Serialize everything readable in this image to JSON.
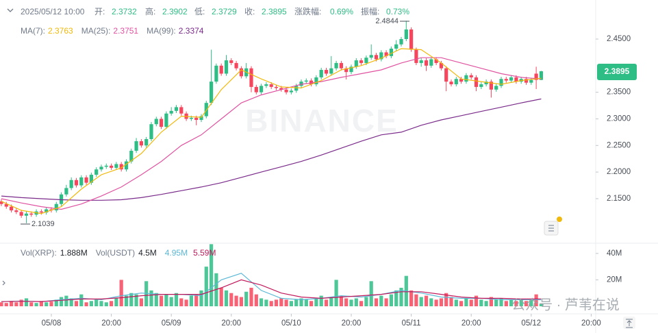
{
  "chart_data": {
    "type": "candlestick",
    "header": {
      "time": "2025/05/12 10:00",
      "open_label": "开:",
      "open": "2.3732",
      "high_label": "高:",
      "high": "2.3902",
      "low_label": "低:",
      "low": "2.3729",
      "close_label": "收:",
      "close": "2.3895",
      "change_label": "涨跌幅:",
      "change": "0.69%",
      "amp_label": "振幅:",
      "amp": "0.73%"
    },
    "watermark": "BINANCE",
    "overlay_text": "公众号 · 芦苇在说",
    "last_price_label": "2.3895",
    "annotations": [
      "2.4844",
      "2.1039"
    ],
    "up_color": "#2ebd85",
    "down_color": "#f6465d",
    "xlim": [
      -10.27,
      108.9
    ],
    "xticks": [
      {
        "value": 0,
        "label": "05/08"
      },
      {
        "value": 12,
        "label": "20:00"
      },
      {
        "value": 24,
        "label": "05/09"
      },
      {
        "value": 36,
        "label": "20:00"
      },
      {
        "value": 48,
        "label": "05/10"
      },
      {
        "value": 60,
        "label": "20:00"
      },
      {
        "value": 72,
        "label": "05/11"
      },
      {
        "value": 84,
        "label": "20:00"
      },
      {
        "value": 96,
        "label": "05/12"
      },
      {
        "value": 108,
        "label": "20:00"
      }
    ],
    "ylim": [
      2.0701,
      2.5234
    ],
    "yticks": [
      {
        "value": 2.45,
        "label": "2.4500"
      },
      {
        "value": 2.35,
        "label": "2.3500"
      },
      {
        "value": 2.3,
        "label": "2.3000"
      },
      {
        "value": 2.25,
        "label": "2.2500"
      },
      {
        "value": 2.2,
        "label": "2.2000"
      },
      {
        "value": 2.15,
        "label": "2.1500"
      }
    ],
    "x": [
      -10,
      -9,
      -8,
      -7,
      -6,
      -5,
      -4,
      -3,
      -2,
      -1,
      0,
      1,
      2,
      3,
      4,
      5,
      6,
      7,
      8,
      9,
      10,
      11,
      12,
      13,
      14,
      15,
      16,
      17,
      18,
      19,
      20,
      21,
      22,
      23,
      24,
      25,
      26,
      27,
      28,
      29,
      30,
      31,
      32,
      33,
      34,
      35,
      36,
      37,
      38,
      39,
      40,
      41,
      42,
      43,
      44,
      45,
      46,
      47,
      48,
      49,
      50,
      51,
      52,
      53,
      54,
      55,
      56,
      57,
      58,
      59,
      60,
      61,
      62,
      63,
      64,
      65,
      66,
      67,
      68,
      69,
      70,
      71,
      72,
      73,
      74,
      75,
      76,
      77,
      78,
      79,
      80,
      81,
      82,
      83,
      84,
      85,
      86,
      87,
      88,
      89,
      90,
      91,
      92,
      93,
      94,
      95,
      96,
      97,
      98
    ],
    "ohlc": [
      [
        2.145,
        2.149,
        2.136,
        2.14
      ],
      [
        2.14,
        2.144,
        2.131,
        2.135
      ],
      [
        2.135,
        2.139,
        2.124,
        2.128
      ],
      [
        2.128,
        2.132,
        2.121,
        2.125
      ],
      [
        2.125,
        2.129,
        2.114,
        2.118
      ],
      [
        2.118,
        2.126,
        2.1039,
        2.122
      ],
      [
        2.122,
        2.126,
        2.116,
        2.12
      ],
      [
        2.12,
        2.13,
        2.116,
        2.126
      ],
      [
        2.126,
        2.13,
        2.12,
        2.124
      ],
      [
        2.124,
        2.134,
        2.12,
        2.13
      ],
      [
        2.13,
        2.134,
        2.124,
        2.128
      ],
      [
        2.128,
        2.144,
        2.124,
        2.14
      ],
      [
        2.14,
        2.162,
        2.136,
        2.158
      ],
      [
        2.158,
        2.176,
        2.154,
        2.17
      ],
      [
        2.17,
        2.19,
        2.166,
        2.185
      ],
      [
        2.185,
        2.189,
        2.171,
        2.175
      ],
      [
        2.175,
        2.194,
        2.171,
        2.19
      ],
      [
        2.19,
        2.194,
        2.176,
        2.18
      ],
      [
        2.18,
        2.199,
        2.176,
        2.195
      ],
      [
        2.195,
        2.209,
        2.191,
        2.205
      ],
      [
        2.205,
        2.214,
        2.201,
        2.21
      ],
      [
        2.21,
        2.216,
        2.206,
        2.212
      ],
      [
        2.212,
        2.216,
        2.204,
        2.208
      ],
      [
        2.208,
        2.219,
        2.204,
        2.215
      ],
      [
        2.215,
        2.219,
        2.201,
        2.205
      ],
      [
        2.205,
        2.224,
        2.201,
        2.22
      ],
      [
        2.22,
        2.244,
        2.216,
        2.24
      ],
      [
        2.24,
        2.264,
        2.236,
        2.258
      ],
      [
        2.258,
        2.262,
        2.246,
        2.25
      ],
      [
        2.25,
        2.266,
        2.246,
        2.262
      ],
      [
        2.262,
        2.294,
        2.258,
        2.29
      ],
      [
        2.29,
        2.304,
        2.286,
        2.3
      ],
      [
        2.3,
        2.304,
        2.281,
        2.285
      ],
      [
        2.285,
        2.314,
        2.281,
        2.31
      ],
      [
        2.31,
        2.322,
        2.306,
        2.315
      ],
      [
        2.315,
        2.326,
        2.311,
        2.322
      ],
      [
        2.322,
        2.326,
        2.306,
        2.31
      ],
      [
        2.31,
        2.314,
        2.296,
        2.3
      ],
      [
        2.3,
        2.306,
        2.296,
        2.302
      ],
      [
        2.302,
        2.306,
        2.288,
        2.298
      ],
      [
        2.298,
        2.309,
        2.294,
        2.305
      ],
      [
        2.305,
        2.334,
        2.301,
        2.33
      ],
      [
        2.33,
        2.43,
        2.326,
        2.37
      ],
      [
        2.37,
        2.404,
        2.366,
        2.4
      ],
      [
        2.4,
        2.404,
        2.381,
        2.385
      ],
      [
        2.385,
        2.42,
        2.381,
        2.41
      ],
      [
        2.41,
        2.414,
        2.401,
        2.405
      ],
      [
        2.405,
        2.409,
        2.391,
        2.395
      ],
      [
        2.395,
        2.399,
        2.376,
        2.38
      ],
      [
        2.38,
        2.405,
        2.376,
        2.395
      ],
      [
        2.395,
        2.399,
        2.35,
        2.36
      ],
      [
        2.36,
        2.364,
        2.346,
        2.35
      ],
      [
        2.35,
        2.366,
        2.346,
        2.362
      ],
      [
        2.362,
        2.369,
        2.358,
        2.365
      ],
      [
        2.365,
        2.369,
        2.356,
        2.36
      ],
      [
        2.36,
        2.364,
        2.354,
        2.358
      ],
      [
        2.358,
        2.362,
        2.351,
        2.355
      ],
      [
        2.355,
        2.359,
        2.346,
        2.35
      ],
      [
        2.35,
        2.357,
        2.346,
        2.353
      ],
      [
        2.353,
        2.366,
        2.349,
        2.362
      ],
      [
        2.362,
        2.374,
        2.358,
        2.37
      ],
      [
        2.37,
        2.376,
        2.366,
        2.372
      ],
      [
        2.372,
        2.376,
        2.361,
        2.365
      ],
      [
        2.365,
        2.382,
        2.361,
        2.378
      ],
      [
        2.378,
        2.396,
        2.374,
        2.392
      ],
      [
        2.392,
        2.396,
        2.381,
        2.385
      ],
      [
        2.385,
        2.418,
        2.381,
        2.395
      ],
      [
        2.395,
        2.409,
        2.391,
        2.405
      ],
      [
        2.405,
        2.409,
        2.391,
        2.395
      ],
      [
        2.395,
        2.399,
        2.374,
        2.388
      ],
      [
        2.388,
        2.402,
        2.384,
        2.398
      ],
      [
        2.398,
        2.414,
        2.394,
        2.41
      ],
      [
        2.41,
        2.414,
        2.401,
        2.405
      ],
      [
        2.405,
        2.419,
        2.401,
        2.415
      ],
      [
        2.415,
        2.44,
        2.411,
        2.42
      ],
      [
        2.42,
        2.424,
        2.408,
        2.412
      ],
      [
        2.412,
        2.429,
        2.408,
        2.425
      ],
      [
        2.425,
        2.429,
        2.414,
        2.418
      ],
      [
        2.418,
        2.436,
        2.414,
        2.432
      ],
      [
        2.432,
        2.448,
        2.428,
        2.44
      ],
      [
        2.44,
        2.454,
        2.436,
        2.45
      ],
      [
        2.45,
        2.4844,
        2.446,
        2.468
      ],
      [
        2.468,
        2.472,
        2.426,
        2.43
      ],
      [
        2.43,
        2.434,
        2.401,
        2.405
      ],
      [
        2.405,
        2.414,
        2.398,
        2.41
      ],
      [
        2.41,
        2.414,
        2.39,
        2.4
      ],
      [
        2.4,
        2.416,
        2.396,
        2.412
      ],
      [
        2.412,
        2.416,
        2.401,
        2.405
      ],
      [
        2.405,
        2.409,
        2.391,
        2.395
      ],
      [
        2.395,
        2.399,
        2.352,
        2.37
      ],
      [
        2.37,
        2.374,
        2.361,
        2.365
      ],
      [
        2.365,
        2.379,
        2.361,
        2.375
      ],
      [
        2.375,
        2.379,
        2.366,
        2.37
      ],
      [
        2.37,
        2.386,
        2.366,
        2.382
      ],
      [
        2.382,
        2.386,
        2.374,
        2.378
      ],
      [
        2.378,
        2.382,
        2.352,
        2.36
      ],
      [
        2.36,
        2.369,
        2.356,
        2.365
      ],
      [
        2.365,
        2.374,
        2.361,
        2.37
      ],
      [
        2.37,
        2.374,
        2.34,
        2.355
      ],
      [
        2.355,
        2.366,
        2.351,
        2.362
      ],
      [
        2.362,
        2.379,
        2.358,
        2.375
      ],
      [
        2.375,
        2.379,
        2.368,
        2.372
      ],
      [
        2.372,
        2.382,
        2.368,
        2.378
      ],
      [
        2.378,
        2.382,
        2.366,
        2.37
      ],
      [
        2.37,
        2.379,
        2.366,
        2.375
      ],
      [
        2.375,
        2.379,
        2.364,
        2.368
      ],
      [
        2.368,
        2.377,
        2.364,
        2.373
      ],
      [
        2.385,
        2.398,
        2.356,
        2.3732
      ],
      [
        2.3732,
        2.3902,
        2.3729,
        2.3895
      ]
    ],
    "ma_x": [
      -10,
      -6,
      -2,
      2,
      6,
      10,
      14,
      18,
      22,
      26,
      30,
      34,
      38,
      42,
      46,
      50,
      54,
      58,
      62,
      66,
      70,
      74,
      78,
      82,
      86,
      90,
      94,
      98
    ],
    "ma": [
      {
        "name": "MA(7):",
        "value_label": "2.3763",
        "color": "#f0b90b",
        "values": [
          2.145,
          2.128,
          2.122,
          2.135,
          2.168,
          2.195,
          2.208,
          2.235,
          2.275,
          2.305,
          2.303,
          2.355,
          2.392,
          2.375,
          2.36,
          2.358,
          2.372,
          2.392,
          2.4,
          2.414,
          2.432,
          2.43,
          2.405,
          2.375,
          2.37,
          2.365,
          2.372,
          2.3763
        ]
      },
      {
        "name": "MA(25):",
        "value_label": "2.3751",
        "color": "#e052a0",
        "values": [
          2.15,
          2.142,
          2.135,
          2.13,
          2.14,
          2.155,
          2.172,
          2.195,
          2.22,
          2.25,
          2.27,
          2.3,
          2.33,
          2.345,
          2.355,
          2.365,
          2.37,
          2.378,
          2.385,
          2.392,
          2.405,
          2.415,
          2.415,
          2.405,
          2.395,
          2.385,
          2.378,
          2.3751
        ]
      },
      {
        "name": "MA(99):",
        "value_label": "2.3374",
        "color": "#7a2a8a",
        "values": [
          2.155,
          2.152,
          2.15,
          2.148,
          2.147,
          2.147,
          2.148,
          2.152,
          2.158,
          2.165,
          2.172,
          2.18,
          2.19,
          2.2,
          2.21,
          2.22,
          2.232,
          2.245,
          2.258,
          2.27,
          2.275,
          2.288,
          2.298,
          2.306,
          2.314,
          2.322,
          2.33,
          2.3374
        ]
      }
    ],
    "volume": {
      "labels": [
        "Vol(XRP):",
        "1.888M",
        "Vol(USDT)",
        "4.5M"
      ],
      "ylim": [
        0,
        47.7
      ],
      "yticks": [
        {
          "value": 40,
          "label": "40M"
        },
        {
          "value": 20,
          "label": "20M"
        }
      ],
      "values": [
        3,
        2.5,
        4,
        3,
        5,
        6,
        3,
        2.5,
        4,
        3,
        3.5,
        5,
        7,
        8,
        6,
        4,
        9,
        3,
        4,
        5,
        4,
        3,
        4,
        6,
        20,
        8,
        10,
        9,
        6,
        19,
        12,
        10,
        8,
        9,
        7,
        10,
        6,
        5,
        8,
        9,
        12,
        30,
        47,
        25,
        14,
        12,
        10,
        8,
        7,
        11,
        14,
        9,
        6,
        5,
        4,
        5,
        6,
        5,
        4,
        5,
        6,
        5,
        4,
        6,
        8,
        5,
        7,
        20,
        8,
        6,
        5,
        6,
        4,
        7,
        19,
        6,
        8,
        6,
        9,
        12,
        14,
        23,
        12,
        9,
        7,
        8,
        6,
        5,
        6,
        10,
        7,
        5,
        4,
        6,
        5,
        8,
        5,
        4,
        7,
        5,
        6,
        4,
        5,
        4,
        5,
        4,
        5,
        9,
        1.888
      ],
      "series": [
        {
          "name": "4.95M",
          "color": "#5bb8d6",
          "values": [
            3.5,
            4,
            3.5,
            5,
            6,
            5,
            8,
            10,
            9,
            9,
            8,
            20,
            25,
            12,
            6,
            5,
            6,
            8,
            7,
            9,
            12,
            10,
            7,
            6,
            6,
            5,
            5,
            4.95
          ]
        },
        {
          "name": "5.59M",
          "color": "#c2185b",
          "values": [
            3.5,
            3.8,
            3.6,
            4.5,
            5.5,
            5.5,
            6.5,
            8,
            9,
            9,
            9,
            14,
            20,
            16,
            10,
            7,
            6,
            7,
            8,
            9,
            11,
            11,
            9,
            7,
            6,
            6,
            5.5,
            5.59
          ]
        }
      ]
    }
  }
}
